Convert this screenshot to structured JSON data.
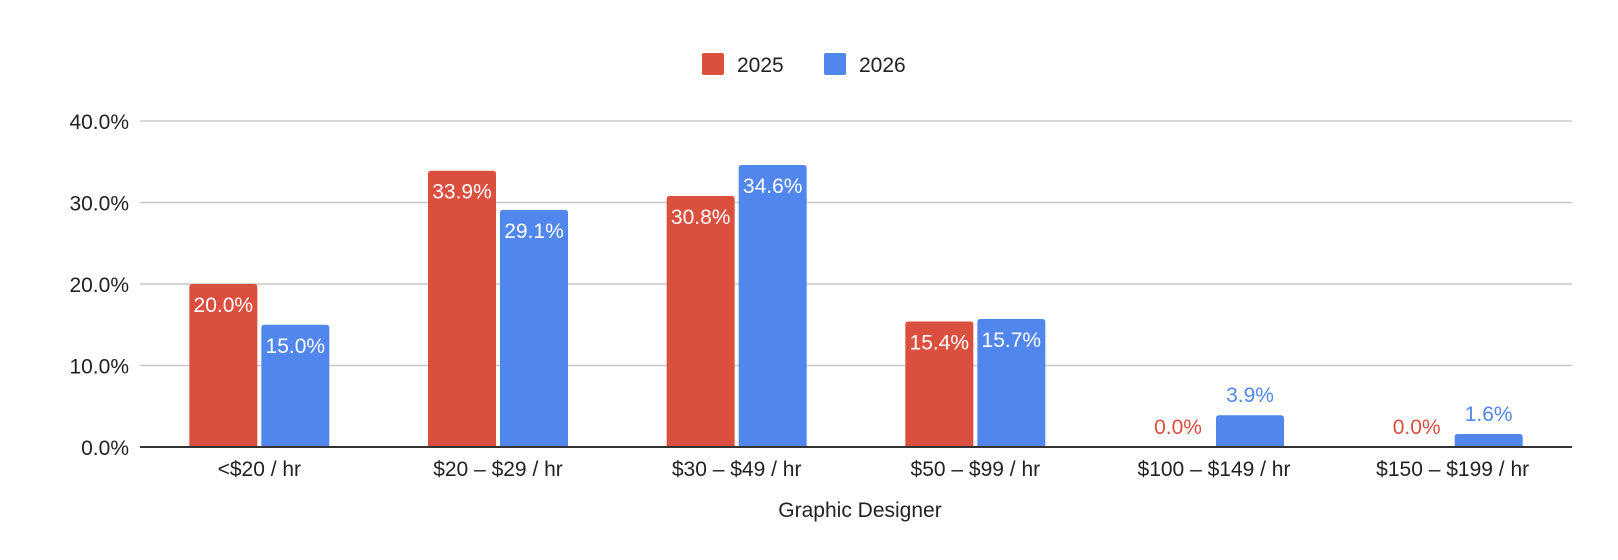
{
  "chart_data": {
    "type": "bar",
    "title": "",
    "xlabel": "Graphic Designer",
    "ylabel": "",
    "ylim": [
      0,
      40
    ],
    "yticks": [
      0,
      10,
      20,
      30,
      40
    ],
    "ytick_labels": [
      "0.0%",
      "10.0%",
      "20.0%",
      "30.0%",
      "40.0%"
    ],
    "grid": true,
    "legend_position": "top-center",
    "categories": [
      "<$20 / hr",
      "$20 – $29 / hr",
      "$30 – $49 / hr",
      "$50 – $99 / hr",
      "$100 – $149 / hr",
      "$150 – $199 / hr"
    ],
    "series": [
      {
        "name": "2025",
        "color": "#db4f3f",
        "values": [
          20.0,
          33.9,
          30.8,
          15.4,
          0.0,
          0.0
        ],
        "labels": [
          "20.0%",
          "33.9%",
          "30.8%",
          "15.4%",
          "0.0%",
          "0.0%"
        ]
      },
      {
        "name": "2026",
        "color": "#5186ec",
        "values": [
          15.0,
          29.1,
          34.6,
          15.7,
          3.9,
          1.6
        ],
        "labels": [
          "15.0%",
          "29.1%",
          "34.6%",
          "15.7%",
          "3.9%",
          "1.6%"
        ]
      }
    ]
  }
}
